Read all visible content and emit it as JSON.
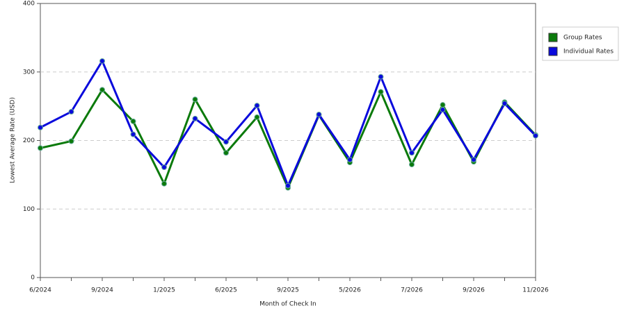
{
  "chart_data": {
    "type": "line",
    "x_label": "Month of Check In",
    "y_label": "Lowest Average Rate (USD)",
    "categories": [
      "6/2024",
      null,
      "9/2024",
      null,
      "1/2025",
      null,
      "6/2025",
      null,
      "9/2025",
      null,
      "5/2026",
      null,
      "7/2026",
      null,
      "9/2026",
      null,
      "11/2026"
    ],
    "series": [
      {
        "name": "Group Rates",
        "color": "#0b7a0b",
        "values": [
          189,
          199,
          274,
          228,
          137,
          260,
          182,
          234,
          131,
          237,
          168,
          271,
          165,
          252,
          169,
          256,
          208
        ]
      },
      {
        "name": "Individual Rates",
        "color": "#0a0adc",
        "values": [
          219,
          242,
          316,
          209,
          161,
          232,
          198,
          251,
          134,
          238,
          172,
          293,
          182,
          245,
          172,
          254,
          207
        ]
      }
    ],
    "ylim": [
      0,
      400
    ],
    "yticks": [
      0,
      100,
      200,
      300,
      400
    ],
    "grid": true,
    "legend": "right"
  }
}
